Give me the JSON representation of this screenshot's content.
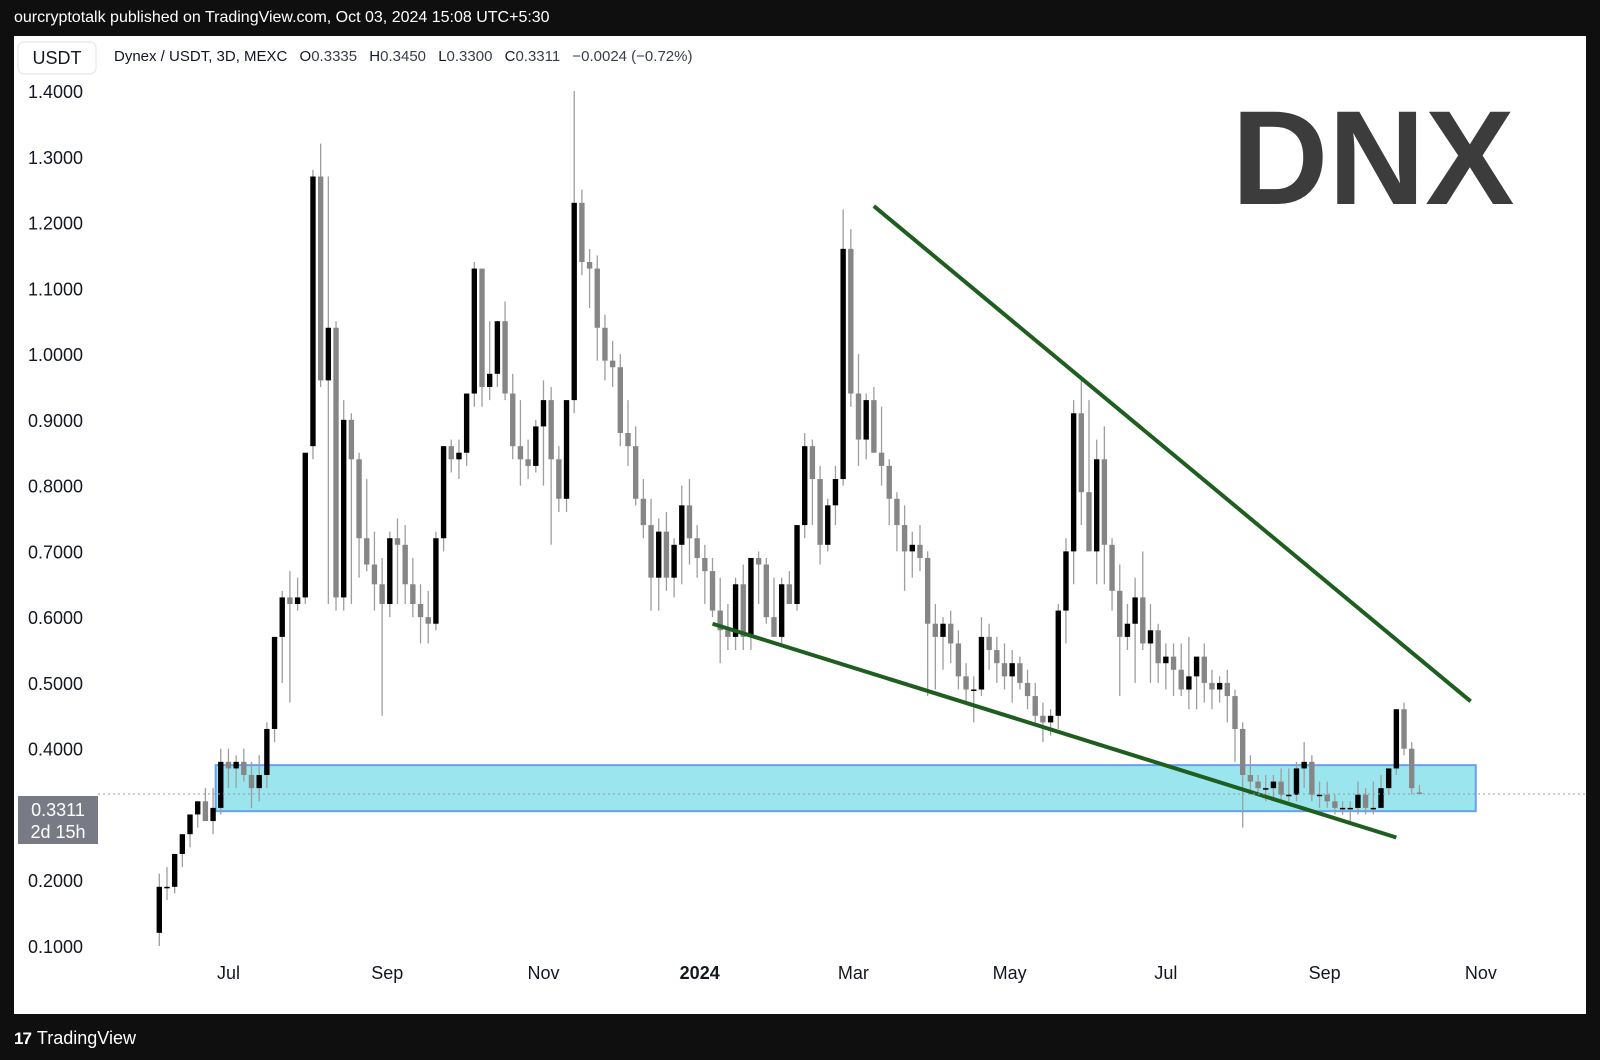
{
  "header": {
    "publisher_line": "ourcryptotalk published on TradingView.com, Oct 03, 2024 15:08 UTC+5:30"
  },
  "symbol_bar": {
    "currency_button": "USDT",
    "symbol": "Dynex / USDT, 3D, MEXC",
    "o_label": "O",
    "o_value": "0.3335",
    "h_label": "H",
    "h_value": "0.3450",
    "l_label": "L",
    "l_value": "0.3300",
    "c_label": "C",
    "c_value": "0.3311",
    "change": "−0.0024 (−0.72%)"
  },
  "watermark": "DNX",
  "price_badge": {
    "price": "0.3311",
    "countdown": "2d 15h"
  },
  "footer": {
    "brand": "TradingView",
    "logo_glyph": "17"
  },
  "colors": {
    "bull": "#000000",
    "bear": "#868686",
    "wick": "#9e9e9e",
    "trendline": "#1e5e1e",
    "zone_fill": "#9ae5ee",
    "zone_border": "#6b9ff0",
    "badge_bg": "#787b86"
  },
  "chart_data": {
    "type": "candlestick",
    "title": "Dynex / USDT, 3D, MEXC",
    "ylim": [
      0.08,
      1.42
    ],
    "y_ticks": [
      "0.1000",
      "0.2000",
      "0.4000",
      "0.5000",
      "0.6000",
      "0.7000",
      "0.8000",
      "0.9000",
      "1.0000",
      "1.1000",
      "1.2000",
      "1.3000",
      "1.4000"
    ],
    "y_tick_values": [
      0.1,
      0.2,
      0.4,
      0.5,
      0.6,
      0.7,
      0.8,
      0.9,
      1.0,
      1.1,
      1.2,
      1.3,
      1.4
    ],
    "x_ticks": [
      {
        "label": "Jul",
        "date": "2023-07-01",
        "bold": false
      },
      {
        "label": "Sep",
        "date": "2023-09-01",
        "bold": false
      },
      {
        "label": "Nov",
        "date": "2023-11-01",
        "bold": false
      },
      {
        "label": "2024",
        "date": "2024-01-01",
        "bold": true
      },
      {
        "label": "Mar",
        "date": "2024-03-01",
        "bold": false
      },
      {
        "label": "May",
        "date": "2024-05-01",
        "bold": false
      },
      {
        "label": "Jul",
        "date": "2024-07-01",
        "bold": false
      },
      {
        "label": "Sep",
        "date": "2024-09-01",
        "bold": false
      },
      {
        "label": "Nov",
        "date": "2024-11-01",
        "bold": false
      }
    ],
    "x_range": [
      "2023-05-22",
      "2024-11-03"
    ],
    "last_price": 0.3311,
    "support_zone": {
      "from": "2023-06-26",
      "to": "2024-10-30",
      "low": 0.305,
      "high": 0.375
    },
    "trendlines": [
      {
        "name": "upper",
        "p1": {
          "date": "2024-03-09",
          "price": 1.225
        },
        "p2": {
          "date": "2024-10-28",
          "price": 0.472
        }
      },
      {
        "name": "lower",
        "p1": {
          "date": "2024-01-06",
          "price": 0.59
        },
        "p2": {
          "date": "2024-09-29",
          "price": 0.265
        }
      }
    ],
    "candles": [
      {
        "o": 0.12,
        "h": 0.21,
        "l": 0.1,
        "c": 0.19
      },
      {
        "o": 0.19,
        "h": 0.22,
        "l": 0.17,
        "c": 0.19
      },
      {
        "o": 0.19,
        "h": 0.24,
        "l": 0.18,
        "c": 0.24
      },
      {
        "o": 0.24,
        "h": 0.27,
        "l": 0.22,
        "c": 0.27
      },
      {
        "o": 0.27,
        "h": 0.3,
        "l": 0.25,
        "c": 0.3
      },
      {
        "o": 0.3,
        "h": 0.32,
        "l": 0.28,
        "c": 0.32
      },
      {
        "o": 0.32,
        "h": 0.34,
        "l": 0.29,
        "c": 0.29
      },
      {
        "o": 0.29,
        "h": 0.34,
        "l": 0.27,
        "c": 0.31
      },
      {
        "o": 0.31,
        "h": 0.4,
        "l": 0.3,
        "c": 0.38
      },
      {
        "o": 0.38,
        "h": 0.4,
        "l": 0.34,
        "c": 0.37
      },
      {
        "o": 0.37,
        "h": 0.39,
        "l": 0.34,
        "c": 0.38
      },
      {
        "o": 0.38,
        "h": 0.4,
        "l": 0.35,
        "c": 0.36
      },
      {
        "o": 0.36,
        "h": 0.38,
        "l": 0.31,
        "c": 0.34
      },
      {
        "o": 0.34,
        "h": 0.39,
        "l": 0.32,
        "c": 0.36
      },
      {
        "o": 0.36,
        "h": 0.44,
        "l": 0.34,
        "c": 0.43
      },
      {
        "o": 0.43,
        "h": 0.57,
        "l": 0.41,
        "c": 0.57
      },
      {
        "o": 0.57,
        "h": 0.64,
        "l": 0.5,
        "c": 0.63
      },
      {
        "o": 0.63,
        "h": 0.67,
        "l": 0.47,
        "c": 0.62
      },
      {
        "o": 0.62,
        "h": 0.66,
        "l": 0.61,
        "c": 0.63
      },
      {
        "o": 0.63,
        "h": 0.85,
        "l": 0.62,
        "c": 0.85
      },
      {
        "o": 0.86,
        "h": 1.28,
        "l": 0.84,
        "c": 1.27
      },
      {
        "o": 1.27,
        "h": 1.32,
        "l": 0.95,
        "c": 0.96
      },
      {
        "o": 0.96,
        "h": 1.27,
        "l": 0.62,
        "c": 1.04
      },
      {
        "o": 1.04,
        "h": 1.05,
        "l": 0.61,
        "c": 0.63
      },
      {
        "o": 0.63,
        "h": 0.93,
        "l": 0.61,
        "c": 0.9
      },
      {
        "o": 0.9,
        "h": 0.91,
        "l": 0.62,
        "c": 0.84
      },
      {
        "o": 0.84,
        "h": 0.85,
        "l": 0.66,
        "c": 0.72
      },
      {
        "o": 0.72,
        "h": 0.81,
        "l": 0.67,
        "c": 0.68
      },
      {
        "o": 0.68,
        "h": 0.73,
        "l": 0.61,
        "c": 0.65
      },
      {
        "o": 0.65,
        "h": 0.69,
        "l": 0.45,
        "c": 0.62
      },
      {
        "o": 0.62,
        "h": 0.73,
        "l": 0.6,
        "c": 0.72
      },
      {
        "o": 0.72,
        "h": 0.75,
        "l": 0.62,
        "c": 0.71
      },
      {
        "o": 0.71,
        "h": 0.74,
        "l": 0.62,
        "c": 0.65
      },
      {
        "o": 0.65,
        "h": 0.69,
        "l": 0.6,
        "c": 0.62
      },
      {
        "o": 0.62,
        "h": 0.65,
        "l": 0.56,
        "c": 0.6
      },
      {
        "o": 0.6,
        "h": 0.64,
        "l": 0.56,
        "c": 0.59
      },
      {
        "o": 0.59,
        "h": 0.73,
        "l": 0.58,
        "c": 0.72
      },
      {
        "o": 0.72,
        "h": 0.86,
        "l": 0.7,
        "c": 0.86
      },
      {
        "o": 0.86,
        "h": 0.87,
        "l": 0.82,
        "c": 0.84
      },
      {
        "o": 0.84,
        "h": 0.87,
        "l": 0.81,
        "c": 0.85
      },
      {
        "o": 0.85,
        "h": 0.94,
        "l": 0.83,
        "c": 0.94
      },
      {
        "o": 0.94,
        "h": 1.14,
        "l": 0.92,
        "c": 1.13
      },
      {
        "o": 1.13,
        "h": 1.12,
        "l": 0.92,
        "c": 0.95
      },
      {
        "o": 0.95,
        "h": 1.05,
        "l": 0.93,
        "c": 0.97
      },
      {
        "o": 0.97,
        "h": 1.05,
        "l": 0.95,
        "c": 1.05
      },
      {
        "o": 1.05,
        "h": 1.08,
        "l": 0.93,
        "c": 0.94
      },
      {
        "o": 0.94,
        "h": 0.97,
        "l": 0.84,
        "c": 0.86
      },
      {
        "o": 0.86,
        "h": 0.93,
        "l": 0.8,
        "c": 0.84
      },
      {
        "o": 0.84,
        "h": 0.87,
        "l": 0.81,
        "c": 0.83
      },
      {
        "o": 0.83,
        "h": 0.9,
        "l": 0.82,
        "c": 0.89
      },
      {
        "o": 0.89,
        "h": 0.96,
        "l": 0.8,
        "c": 0.93
      },
      {
        "o": 0.93,
        "h": 0.95,
        "l": 0.71,
        "c": 0.84
      },
      {
        "o": 0.84,
        "h": 0.86,
        "l": 0.76,
        "c": 0.78
      },
      {
        "o": 0.78,
        "h": 0.93,
        "l": 0.76,
        "c": 0.93
      },
      {
        "o": 0.93,
        "h": 1.4,
        "l": 0.91,
        "c": 1.23
      },
      {
        "o": 1.23,
        "h": 1.25,
        "l": 1.12,
        "c": 1.14
      },
      {
        "o": 1.14,
        "h": 1.16,
        "l": 1.07,
        "c": 1.13
      },
      {
        "o": 1.13,
        "h": 1.15,
        "l": 0.99,
        "c": 1.04
      },
      {
        "o": 1.04,
        "h": 1.06,
        "l": 0.96,
        "c": 0.99
      },
      {
        "o": 0.99,
        "h": 1.02,
        "l": 0.95,
        "c": 0.98
      },
      {
        "o": 0.98,
        "h": 1.0,
        "l": 0.86,
        "c": 0.88
      },
      {
        "o": 0.88,
        "h": 0.93,
        "l": 0.83,
        "c": 0.86
      },
      {
        "o": 0.86,
        "h": 0.89,
        "l": 0.77,
        "c": 0.78
      },
      {
        "o": 0.78,
        "h": 0.81,
        "l": 0.72,
        "c": 0.74
      },
      {
        "o": 0.74,
        "h": 0.78,
        "l": 0.61,
        "c": 0.66
      },
      {
        "o": 0.66,
        "h": 0.75,
        "l": 0.61,
        "c": 0.73
      },
      {
        "o": 0.73,
        "h": 0.76,
        "l": 0.64,
        "c": 0.66
      },
      {
        "o": 0.66,
        "h": 0.72,
        "l": 0.63,
        "c": 0.71
      },
      {
        "o": 0.71,
        "h": 0.8,
        "l": 0.65,
        "c": 0.77
      },
      {
        "o": 0.77,
        "h": 0.81,
        "l": 0.68,
        "c": 0.72
      },
      {
        "o": 0.72,
        "h": 0.74,
        "l": 0.66,
        "c": 0.69
      },
      {
        "o": 0.69,
        "h": 0.71,
        "l": 0.62,
        "c": 0.67
      },
      {
        "o": 0.67,
        "h": 0.69,
        "l": 0.6,
        "c": 0.61
      },
      {
        "o": 0.61,
        "h": 0.66,
        "l": 0.53,
        "c": 0.58
      },
      {
        "o": 0.58,
        "h": 0.62,
        "l": 0.55,
        "c": 0.57
      },
      {
        "o": 0.57,
        "h": 0.66,
        "l": 0.55,
        "c": 0.65
      },
      {
        "o": 0.65,
        "h": 0.68,
        "l": 0.55,
        "c": 0.57
      },
      {
        "o": 0.57,
        "h": 0.69,
        "l": 0.55,
        "c": 0.69
      },
      {
        "o": 0.69,
        "h": 0.7,
        "l": 0.62,
        "c": 0.68
      },
      {
        "o": 0.68,
        "h": 0.69,
        "l": 0.59,
        "c": 0.6
      },
      {
        "o": 0.6,
        "h": 0.66,
        "l": 0.57,
        "c": 0.57
      },
      {
        "o": 0.57,
        "h": 0.66,
        "l": 0.56,
        "c": 0.65
      },
      {
        "o": 0.65,
        "h": 0.67,
        "l": 0.62,
        "c": 0.62
      },
      {
        "o": 0.62,
        "h": 0.74,
        "l": 0.61,
        "c": 0.74
      },
      {
        "o": 0.74,
        "h": 0.88,
        "l": 0.72,
        "c": 0.86
      },
      {
        "o": 0.86,
        "h": 0.87,
        "l": 0.74,
        "c": 0.81
      },
      {
        "o": 0.81,
        "h": 0.83,
        "l": 0.68,
        "c": 0.71
      },
      {
        "o": 0.71,
        "h": 0.78,
        "l": 0.7,
        "c": 0.77
      },
      {
        "o": 0.77,
        "h": 0.83,
        "l": 0.74,
        "c": 0.81
      },
      {
        "o": 0.81,
        "h": 1.22,
        "l": 0.8,
        "c": 1.16
      },
      {
        "o": 1.16,
        "h": 1.19,
        "l": 0.92,
        "c": 0.94
      },
      {
        "o": 0.94,
        "h": 1.0,
        "l": 0.83,
        "c": 0.87
      },
      {
        "o": 0.87,
        "h": 0.94,
        "l": 0.84,
        "c": 0.93
      },
      {
        "o": 0.93,
        "h": 0.95,
        "l": 0.85,
        "c": 0.85
      },
      {
        "o": 0.85,
        "h": 0.92,
        "l": 0.8,
        "c": 0.83
      },
      {
        "o": 0.83,
        "h": 0.84,
        "l": 0.74,
        "c": 0.78
      },
      {
        "o": 0.78,
        "h": 0.79,
        "l": 0.7,
        "c": 0.74
      },
      {
        "o": 0.74,
        "h": 0.77,
        "l": 0.64,
        "c": 0.7
      },
      {
        "o": 0.7,
        "h": 0.73,
        "l": 0.66,
        "c": 0.71
      },
      {
        "o": 0.71,
        "h": 0.74,
        "l": 0.67,
        "c": 0.69
      },
      {
        "o": 0.69,
        "h": 0.7,
        "l": 0.48,
        "c": 0.59
      },
      {
        "o": 0.59,
        "h": 0.62,
        "l": 0.49,
        "c": 0.57
      },
      {
        "o": 0.57,
        "h": 0.6,
        "l": 0.52,
        "c": 0.59
      },
      {
        "o": 0.59,
        "h": 0.61,
        "l": 0.53,
        "c": 0.56
      },
      {
        "o": 0.56,
        "h": 0.58,
        "l": 0.49,
        "c": 0.51
      },
      {
        "o": 0.51,
        "h": 0.53,
        "l": 0.47,
        "c": 0.49
      },
      {
        "o": 0.49,
        "h": 0.51,
        "l": 0.44,
        "c": 0.49
      },
      {
        "o": 0.49,
        "h": 0.6,
        "l": 0.48,
        "c": 0.57
      },
      {
        "o": 0.57,
        "h": 0.59,
        "l": 0.52,
        "c": 0.55
      },
      {
        "o": 0.55,
        "h": 0.57,
        "l": 0.5,
        "c": 0.53
      },
      {
        "o": 0.53,
        "h": 0.56,
        "l": 0.49,
        "c": 0.51
      },
      {
        "o": 0.51,
        "h": 0.55,
        "l": 0.47,
        "c": 0.53
      },
      {
        "o": 0.53,
        "h": 0.54,
        "l": 0.49,
        "c": 0.5
      },
      {
        "o": 0.5,
        "h": 0.52,
        "l": 0.46,
        "c": 0.48
      },
      {
        "o": 0.48,
        "h": 0.5,
        "l": 0.44,
        "c": 0.45
      },
      {
        "o": 0.45,
        "h": 0.47,
        "l": 0.41,
        "c": 0.44
      },
      {
        "o": 0.44,
        "h": 0.46,
        "l": 0.42,
        "c": 0.45
      },
      {
        "o": 0.45,
        "h": 0.62,
        "l": 0.43,
        "c": 0.61
      },
      {
        "o": 0.61,
        "h": 0.72,
        "l": 0.56,
        "c": 0.7
      },
      {
        "o": 0.7,
        "h": 0.93,
        "l": 0.65,
        "c": 0.91
      },
      {
        "o": 0.91,
        "h": 0.96,
        "l": 0.74,
        "c": 0.79
      },
      {
        "o": 0.79,
        "h": 0.93,
        "l": 0.7,
        "c": 0.7
      },
      {
        "o": 0.7,
        "h": 0.87,
        "l": 0.65,
        "c": 0.84
      },
      {
        "o": 0.84,
        "h": 0.89,
        "l": 0.65,
        "c": 0.71
      },
      {
        "o": 0.71,
        "h": 0.72,
        "l": 0.61,
        "c": 0.64
      },
      {
        "o": 0.64,
        "h": 0.68,
        "l": 0.48,
        "c": 0.57
      },
      {
        "o": 0.57,
        "h": 0.62,
        "l": 0.55,
        "c": 0.59
      },
      {
        "o": 0.59,
        "h": 0.66,
        "l": 0.5,
        "c": 0.63
      },
      {
        "o": 0.63,
        "h": 0.7,
        "l": 0.55,
        "c": 0.56
      },
      {
        "o": 0.56,
        "h": 0.62,
        "l": 0.5,
        "c": 0.58
      },
      {
        "o": 0.58,
        "h": 0.59,
        "l": 0.5,
        "c": 0.53
      },
      {
        "o": 0.53,
        "h": 0.56,
        "l": 0.49,
        "c": 0.54
      },
      {
        "o": 0.54,
        "h": 0.56,
        "l": 0.48,
        "c": 0.52
      },
      {
        "o": 0.52,
        "h": 0.56,
        "l": 0.48,
        "c": 0.49
      },
      {
        "o": 0.49,
        "h": 0.57,
        "l": 0.46,
        "c": 0.51
      },
      {
        "o": 0.51,
        "h": 0.53,
        "l": 0.46,
        "c": 0.54
      },
      {
        "o": 0.54,
        "h": 0.56,
        "l": 0.47,
        "c": 0.5
      },
      {
        "o": 0.5,
        "h": 0.52,
        "l": 0.46,
        "c": 0.49
      },
      {
        "o": 0.49,
        "h": 0.51,
        "l": 0.47,
        "c": 0.5
      },
      {
        "o": 0.5,
        "h": 0.52,
        "l": 0.44,
        "c": 0.48
      },
      {
        "o": 0.48,
        "h": 0.49,
        "l": 0.38,
        "c": 0.43
      },
      {
        "o": 0.43,
        "h": 0.44,
        "l": 0.28,
        "c": 0.36
      },
      {
        "o": 0.36,
        "h": 0.39,
        "l": 0.33,
        "c": 0.35
      },
      {
        "o": 0.35,
        "h": 0.36,
        "l": 0.33,
        "c": 0.34
      },
      {
        "o": 0.34,
        "h": 0.36,
        "l": 0.32,
        "c": 0.34
      },
      {
        "o": 0.34,
        "h": 0.36,
        "l": 0.32,
        "c": 0.35
      },
      {
        "o": 0.35,
        "h": 0.37,
        "l": 0.32,
        "c": 0.33
      },
      {
        "o": 0.33,
        "h": 0.37,
        "l": 0.32,
        "c": 0.33
      },
      {
        "o": 0.33,
        "h": 0.38,
        "l": 0.32,
        "c": 0.37
      },
      {
        "o": 0.37,
        "h": 0.41,
        "l": 0.34,
        "c": 0.38
      },
      {
        "o": 0.38,
        "h": 0.39,
        "l": 0.32,
        "c": 0.33
      },
      {
        "o": 0.33,
        "h": 0.35,
        "l": 0.31,
        "c": 0.33
      },
      {
        "o": 0.33,
        "h": 0.35,
        "l": 0.31,
        "c": 0.32
      },
      {
        "o": 0.32,
        "h": 0.33,
        "l": 0.3,
        "c": 0.31
      },
      {
        "o": 0.31,
        "h": 0.32,
        "l": 0.3,
        "c": 0.31
      },
      {
        "o": 0.31,
        "h": 0.32,
        "l": 0.29,
        "c": 0.31
      },
      {
        "o": 0.31,
        "h": 0.35,
        "l": 0.3,
        "c": 0.33
      },
      {
        "o": 0.33,
        "h": 0.34,
        "l": 0.3,
        "c": 0.31
      },
      {
        "o": 0.31,
        "h": 0.35,
        "l": 0.3,
        "c": 0.31
      },
      {
        "o": 0.31,
        "h": 0.36,
        "l": 0.31,
        "c": 0.34
      },
      {
        "o": 0.34,
        "h": 0.37,
        "l": 0.33,
        "c": 0.37
      },
      {
        "o": 0.37,
        "h": 0.46,
        "l": 0.36,
        "c": 0.46
      },
      {
        "o": 0.46,
        "h": 0.47,
        "l": 0.39,
        "c": 0.4
      },
      {
        "o": 0.4,
        "h": 0.41,
        "l": 0.33,
        "c": 0.34
      },
      {
        "o": 0.3335,
        "h": 0.345,
        "l": 0.33,
        "c": 0.3311
      }
    ]
  }
}
